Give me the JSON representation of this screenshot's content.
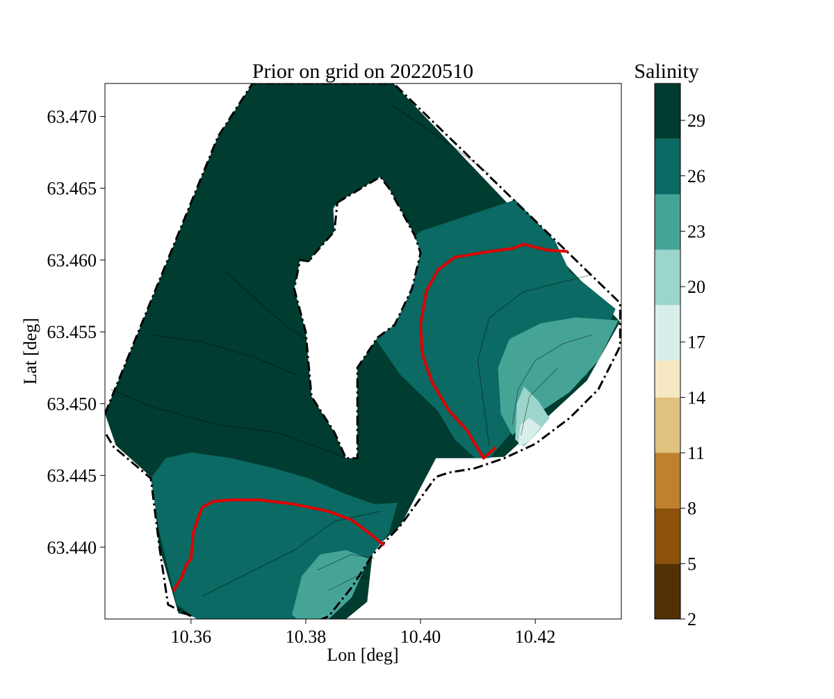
{
  "chart_data": {
    "type": "heatmap",
    "title": "Prior on grid on 20220510",
    "xlabel": "Lon [deg]",
    "ylabel": "Lat [deg]",
    "xlim": [
      10.345,
      10.435
    ],
    "ylim": [
      63.435,
      63.4723
    ],
    "xticks": [
      {
        "value": 10.36,
        "label": "10.36"
      },
      {
        "value": 10.38,
        "label": "10.38"
      },
      {
        "value": 10.4,
        "label": "10.40"
      },
      {
        "value": 10.42,
        "label": "10.42"
      }
    ],
    "yticks": [
      {
        "value": 63.44,
        "label": "63.440"
      },
      {
        "value": 63.445,
        "label": "63.445"
      },
      {
        "value": 63.45,
        "label": "63.450"
      },
      {
        "value": 63.455,
        "label": "63.455"
      },
      {
        "value": 63.46,
        "label": "63.460"
      },
      {
        "value": 63.465,
        "label": "63.465"
      },
      {
        "value": 63.47,
        "label": "63.470"
      }
    ],
    "colorbar": {
      "label": "Salinity",
      "range": [
        2,
        31
      ],
      "tick_labels": [
        "2",
        "5",
        "8",
        "11",
        "14",
        "17",
        "20",
        "23",
        "26",
        "29"
      ],
      "tick_values": [
        2,
        5,
        8,
        11,
        14,
        17,
        20,
        23,
        26,
        29
      ],
      "levels": [
        2,
        5,
        8,
        11,
        14,
        16,
        19,
        22,
        25,
        28,
        31
      ],
      "colors": [
        "#543005",
        "#8c510a",
        "#bf812d",
        "#dfc27d",
        "#f6e8c3",
        "#d8eeea",
        "#9bd5cb",
        "#46a497",
        "#0b6a63",
        "#003c30"
      ]
    },
    "boundary_line": {
      "style": "dash-dot",
      "color": "#000000"
    },
    "threshold_contour": {
      "color": "#e00000"
    },
    "regions": [
      {
        "name": "outer-domain",
        "salinity_band": [
          28,
          31
        ],
        "color": "#003c30",
        "polygon": [
          [
            10.345,
            63.4493
          ],
          [
            10.3647,
            63.4686
          ],
          [
            10.3707,
            63.4723
          ],
          [
            10.3953,
            63.4723
          ],
          [
            10.4348,
            63.4557
          ],
          [
            10.429,
            63.4516
          ],
          [
            10.4146,
            63.4463
          ],
          [
            10.4095,
            63.4462
          ],
          [
            10.4027,
            63.4462
          ],
          [
            10.3965,
            63.4415
          ],
          [
            10.3917,
            63.4398
          ],
          [
            10.3907,
            63.4362
          ],
          [
            10.3855,
            63.4345
          ],
          [
            10.3675,
            63.4345
          ],
          [
            10.3578,
            63.4354
          ],
          [
            10.3544,
            63.4401
          ],
          [
            10.3533,
            63.4448
          ],
          [
            10.3469,
            63.4471
          ]
        ]
      },
      {
        "name": "east-teal",
        "salinity_band": [
          25,
          28
        ],
        "color": "#0b6a63",
        "polygon": [
          [
            10.4,
            63.462
          ],
          [
            10.4165,
            63.4642
          ],
          [
            10.4235,
            63.4613
          ],
          [
            10.426,
            63.4592
          ],
          [
            10.434,
            63.4566
          ],
          [
            10.429,
            63.452
          ],
          [
            10.418,
            63.449
          ],
          [
            10.412,
            63.4462
          ],
          [
            10.4095,
            63.4462
          ],
          [
            10.406,
            63.4475
          ],
          [
            10.403,
            63.4495
          ],
          [
            10.3965,
            63.452
          ],
          [
            10.3913,
            63.455
          ],
          [
            10.3885,
            63.4546
          ],
          [
            10.392,
            63.4575
          ],
          [
            10.3947,
            63.4605
          ],
          [
            10.3985,
            63.4615
          ]
        ]
      },
      {
        "name": "south-teal",
        "salinity_band": [
          25,
          28
        ],
        "color": "#0b6a63",
        "polygon": [
          [
            10.3556,
            63.4462
          ],
          [
            10.36,
            63.4466
          ],
          [
            10.367,
            63.4462
          ],
          [
            10.3745,
            63.4455
          ],
          [
            10.3805,
            63.4448
          ],
          [
            10.387,
            63.4437
          ],
          [
            10.392,
            63.443
          ],
          [
            10.396,
            63.4431
          ],
          [
            10.3945,
            63.441
          ],
          [
            10.391,
            63.4392
          ],
          [
            10.388,
            63.437
          ],
          [
            10.384,
            63.4355
          ],
          [
            10.378,
            63.4345
          ],
          [
            10.37,
            63.4345
          ],
          [
            10.361,
            63.435
          ],
          [
            10.3575,
            63.436
          ],
          [
            10.3545,
            63.441
          ],
          [
            10.353,
            63.4448
          ]
        ]
      },
      {
        "name": "east-medium",
        "salinity_band": [
          22,
          25
        ],
        "color": "#46a497",
        "polygon": [
          [
            10.414,
            63.4493
          ],
          [
            10.4135,
            63.4525
          ],
          [
            10.4155,
            63.4545
          ],
          [
            10.421,
            63.4556
          ],
          [
            10.427,
            63.456
          ],
          [
            10.4345,
            63.4558
          ],
          [
            10.431,
            63.453
          ],
          [
            10.426,
            63.4508
          ],
          [
            10.42,
            63.4492
          ],
          [
            10.416,
            63.4478
          ]
        ]
      },
      {
        "name": "south-medium",
        "salinity_band": [
          22,
          25
        ],
        "color": "#46a497",
        "polygon": [
          [
            10.3776,
            63.4353
          ],
          [
            10.3793,
            63.438
          ],
          [
            10.3825,
            63.4395
          ],
          [
            10.387,
            63.4398
          ],
          [
            10.391,
            63.4392
          ],
          [
            10.388,
            63.4365
          ],
          [
            10.384,
            63.435
          ],
          [
            10.38,
            63.4345
          ]
        ]
      },
      {
        "name": "east-light",
        "salinity_band": [
          19,
          22
        ],
        "color": "#9bd5cb",
        "polygon": [
          [
            10.4165,
            63.4475
          ],
          [
            10.4168,
            63.45
          ],
          [
            10.418,
            63.4512
          ],
          [
            10.4205,
            63.4502
          ],
          [
            10.4225,
            63.449
          ],
          [
            10.42,
            63.4478
          ],
          [
            10.418,
            63.447
          ]
        ]
      },
      {
        "name": "east-pale",
        "salinity_band": [
          16,
          19
        ],
        "color": "#d8eeea",
        "polygon": [
          [
            10.417,
            63.447
          ],
          [
            10.4174,
            63.4485
          ],
          [
            10.419,
            63.449
          ],
          [
            10.421,
            63.4484
          ],
          [
            10.419,
            63.4474
          ]
        ]
      },
      {
        "name": "island",
        "salinity_band": null,
        "color": "#ffffff",
        "polygon": [
          [
            10.3855,
            63.464
          ],
          [
            10.393,
            63.4658
          ],
          [
            10.3945,
            63.465
          ],
          [
            10.399,
            63.4617
          ],
          [
            10.4,
            63.4605
          ],
          [
            10.3985,
            63.458
          ],
          [
            10.3955,
            63.4555
          ],
          [
            10.3925,
            63.4546
          ],
          [
            10.389,
            63.4525
          ],
          [
            10.389,
            63.4462
          ],
          [
            10.387,
            63.4462
          ],
          [
            10.385,
            63.448
          ],
          [
            10.381,
            63.4505
          ],
          [
            10.38,
            63.455
          ],
          [
            10.378,
            63.458
          ],
          [
            10.379,
            63.46
          ],
          [
            10.3808,
            63.4599
          ],
          [
            10.381,
            63.4602
          ],
          [
            10.385,
            63.462
          ],
          [
            10.3848,
            63.4636
          ]
        ]
      }
    ],
    "thin_contours": [
      [
        [
          10.346,
          63.451
        ],
        [
          10.353,
          63.4498
        ],
        [
          10.365,
          63.4485
        ],
        [
          10.375,
          63.448
        ],
        [
          10.382,
          63.447
        ],
        [
          10.387,
          63.4462
        ]
      ],
      [
        [
          10.353,
          63.4548
        ],
        [
          10.362,
          63.4543
        ],
        [
          10.3705,
          63.4533
        ],
        [
          10.3785,
          63.452
        ]
      ],
      [
        [
          10.366,
          63.4592
        ],
        [
          10.372,
          63.457
        ],
        [
          10.377,
          63.4553
        ],
        [
          10.38,
          63.4545
        ]
      ],
      [
        [
          10.395,
          63.4708
        ],
        [
          10.406,
          63.4678
        ],
        [
          10.412,
          63.466
        ]
      ],
      [
        [
          10.43,
          63.459
        ],
        [
          10.425,
          63.4585
        ],
        [
          10.418,
          63.4578
        ],
        [
          10.412,
          63.456
        ],
        [
          10.41,
          63.453
        ],
        [
          10.411,
          63.45
        ],
        [
          10.412,
          63.447
        ]
      ],
      [
        [
          10.43,
          63.4548
        ],
        [
          10.425,
          63.4542
        ],
        [
          10.42,
          63.453
        ],
        [
          10.417,
          63.451
        ],
        [
          10.416,
          63.4485
        ]
      ],
      [
        [
          10.424,
          63.4525
        ],
        [
          10.419,
          63.4505
        ],
        [
          10.4175,
          63.4478
        ]
      ],
      [
        [
          10.362,
          63.4366
        ],
        [
          10.37,
          63.4382
        ],
        [
          10.378,
          63.4398
        ],
        [
          10.385,
          63.4418
        ],
        [
          10.393,
          63.4425
        ]
      ],
      [
        [
          10.382,
          63.4384
        ],
        [
          10.388,
          63.4395
        ],
        [
          10.392,
          63.4392
        ]
      ],
      [
        [
          10.384,
          63.437
        ],
        [
          10.389,
          63.438
        ],
        [
          10.391,
          63.4378
        ]
      ]
    ],
    "red_contours": [
      [
        [
          10.4255,
          63.4606
        ],
        [
          10.422,
          63.4607
        ],
        [
          10.418,
          63.4611
        ],
        [
          10.416,
          63.4608
        ],
        [
          10.412,
          63.4606
        ],
        [
          10.409,
          63.4604
        ],
        [
          10.406,
          63.4602
        ],
        [
          10.403,
          63.4593
        ],
        [
          10.401,
          63.4578
        ],
        [
          10.4,
          63.4555
        ],
        [
          10.4003,
          63.4535
        ],
        [
          10.402,
          63.4515
        ],
        [
          10.405,
          63.4495
        ],
        [
          10.408,
          63.4482
        ],
        [
          10.4095,
          63.4472
        ],
        [
          10.411,
          63.4462
        ],
        [
          10.413,
          63.4469
        ]
      ],
      [
        [
          10.357,
          63.437
        ],
        [
          10.3585,
          63.438
        ],
        [
          10.3592,
          63.4388
        ],
        [
          10.36,
          63.4392
        ],
        [
          10.3604,
          63.441
        ],
        [
          10.3612,
          63.442
        ],
        [
          10.362,
          63.4428
        ],
        [
          10.364,
          63.4432
        ],
        [
          10.367,
          63.4433
        ],
        [
          10.372,
          63.4433
        ],
        [
          10.378,
          63.443
        ],
        [
          10.384,
          63.4425
        ],
        [
          10.388,
          63.4419
        ],
        [
          10.391,
          63.441
        ],
        [
          10.3935,
          63.4402
        ]
      ]
    ],
    "boundary_segments": [
      [
        [
          10.345,
          63.4493
        ],
        [
          10.3647,
          63.4686
        ],
        [
          10.3707,
          63.4723
        ],
        [
          10.3953,
          63.4723
        ],
        [
          10.4348,
          63.457
        ],
        [
          10.4348,
          63.454
        ],
        [
          10.431,
          63.451
        ],
        [
          10.426,
          63.449
        ],
        [
          10.42,
          63.4472
        ],
        [
          10.4146,
          63.4462
        ],
        [
          10.4095,
          63.4455
        ],
        [
          10.405,
          63.4452
        ],
        [
          10.4027,
          63.4449
        ],
        [
          10.3965,
          63.4415
        ],
        [
          10.3917,
          63.4395
        ],
        [
          10.388,
          63.4372
        ],
        [
          10.384,
          63.4352
        ],
        [
          10.38,
          63.4345
        ]
      ],
      [
        [
          10.36,
          63.4352
        ],
        [
          10.356,
          63.436
        ],
        [
          10.3545,
          63.44
        ],
        [
          10.353,
          63.4448
        ],
        [
          10.3465,
          63.447
        ],
        [
          10.345,
          63.448
        ]
      ],
      [
        [
          10.3855,
          63.464
        ],
        [
          10.393,
          63.4658
        ],
        [
          10.3945,
          63.465
        ],
        [
          10.399,
          63.4617
        ],
        [
          10.4,
          63.4605
        ],
        [
          10.3985,
          63.458
        ],
        [
          10.3955,
          63.4555
        ],
        [
          10.3925,
          63.4546
        ],
        [
          10.389,
          63.4525
        ],
        [
          10.389,
          63.4462
        ],
        [
          10.387,
          63.4462
        ],
        [
          10.385,
          63.448
        ],
        [
          10.381,
          63.4505
        ],
        [
          10.38,
          63.455
        ],
        [
          10.378,
          63.458
        ],
        [
          10.379,
          63.46
        ],
        [
          10.3808,
          63.4599
        ],
        [
          10.381,
          63.4602
        ],
        [
          10.385,
          63.462
        ],
        [
          10.3855,
          63.464
        ]
      ]
    ]
  }
}
